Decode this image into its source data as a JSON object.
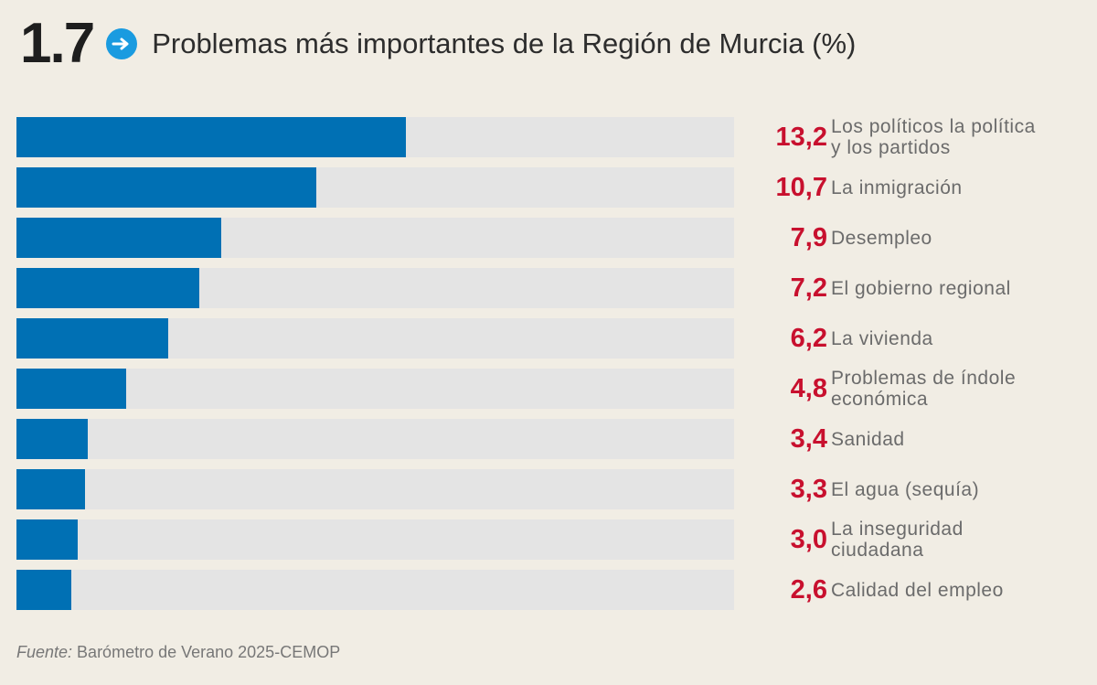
{
  "header": {
    "figure_number": "1.7",
    "title": "Problemas más importantes de la Región de Murcia (%)",
    "icon": "arrow-right-circle-icon",
    "accent_color": "#1a9be0"
  },
  "chart_data": {
    "type": "bar",
    "orientation": "horizontal",
    "title": "Problemas más importantes de la Región de Murcia (%)",
    "xlabel": "",
    "ylabel": "",
    "unit": "%",
    "categories": [
      "Los políticos la política y los partidos",
      "La inmigración",
      "Desempleo",
      "El gobierno regional",
      "La vivienda",
      "Problemas de índole económica",
      "Sanidad",
      "El agua (sequía)",
      "La inseguridad ciudadana",
      "Calidad del empleo"
    ],
    "values": [
      13.2,
      10.7,
      7.9,
      7.2,
      6.2,
      4.8,
      3.4,
      3.3,
      3.0,
      2.6
    ],
    "value_labels": [
      "13,2",
      "10,7",
      "7,9",
      "7,2",
      "6,2",
      "4,8",
      "3,4",
      "3,3",
      "3,0",
      "2,6"
    ],
    "label_lines": [
      [
        "Los políticos la política",
        "y los partidos"
      ],
      [
        "La inmigración"
      ],
      [
        "Desempleo"
      ],
      [
        "El gobierno regional"
      ],
      [
        "La vivienda"
      ],
      [
        "Problemas de índole",
        "económica"
      ],
      [
        "Sanidad"
      ],
      [
        "El agua (sequía)"
      ],
      [
        "La inseguridad",
        "ciudadana"
      ],
      [
        "Calidad del empleo"
      ]
    ],
    "colors": {
      "bar": "#0070b4",
      "track": "#e4e4e4",
      "value": "#c8102e"
    },
    "grid": false,
    "legend": "none"
  },
  "source": {
    "prefix": "Fuente:",
    "text": " Barómetro de Verano 2025-CEMOP"
  }
}
